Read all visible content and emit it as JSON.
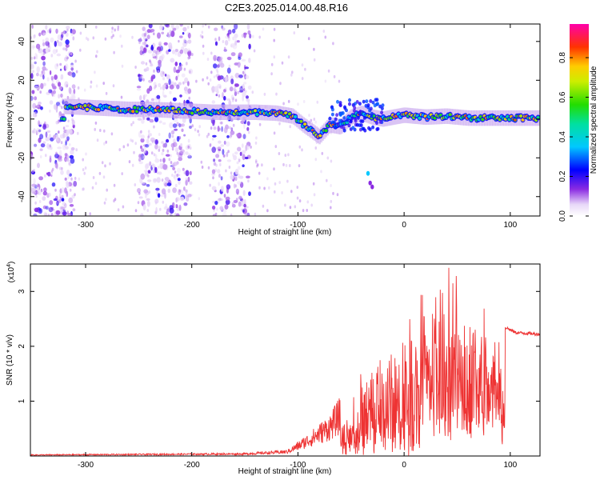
{
  "title": "C2E3.2025.014.00.48.R16",
  "chart_data": [
    {
      "type": "heatmap",
      "xlabel": "Height of straight line (km)",
      "ylabel": "Frequency (Hz)",
      "xlim": [
        -352,
        128
      ],
      "ylim": [
        -50,
        49
      ],
      "x_ticks": [
        -300,
        -200,
        -100,
        0,
        100
      ],
      "y_ticks": [
        -40,
        -20,
        0,
        20,
        40
      ],
      "colorbar": {
        "label": "Normalized spectral amplitude",
        "range": [
          0,
          0.97
        ],
        "ticks": [
          0.0,
          0.2,
          0.4,
          0.6,
          0.8
        ],
        "tick_labels": [
          "0.0",
          "0.2",
          "0.4",
          "0.6",
          "0.8"
        ]
      },
      "ridge": [
        {
          "x": -320,
          "y": 6.5
        },
        {
          "x": -300,
          "y": 6
        },
        {
          "x": -280,
          "y": 5.5
        },
        {
          "x": -260,
          "y": 5
        },
        {
          "x": -240,
          "y": 5
        },
        {
          "x": -220,
          "y": 4.5
        },
        {
          "x": -200,
          "y": 4
        },
        {
          "x": -180,
          "y": 3.5
        },
        {
          "x": -160,
          "y": 3.5
        },
        {
          "x": -140,
          "y": 3.5
        },
        {
          "x": -120,
          "y": 3
        },
        {
          "x": -105,
          "y": 1.5
        },
        {
          "x": -95,
          "y": -3
        },
        {
          "x": -80,
          "y": -9
        },
        {
          "x": -70,
          "y": -3
        },
        {
          "x": -60,
          "y": -4
        },
        {
          "x": -50,
          "y": 1
        },
        {
          "x": -40,
          "y": 3
        },
        {
          "x": -30,
          "y": 1
        },
        {
          "x": -20,
          "y": 0
        },
        {
          "x": 0,
          "y": 2
        },
        {
          "x": 20,
          "y": 1
        },
        {
          "x": 40,
          "y": 1.5
        },
        {
          "x": 60,
          "y": 0.5
        },
        {
          "x": 80,
          "y": 0.5
        },
        {
          "x": 100,
          "y": 0.5
        },
        {
          "x": 128,
          "y": 0.5
        }
      ],
      "outlier_points": [
        {
          "x": -34,
          "y": -28
        },
        {
          "x": -32,
          "y": -33
        },
        {
          "x": -30,
          "y": -35
        }
      ],
      "noise_bands": [
        [
          -352,
          -310
        ],
        [
          -250,
          -200
        ],
        [
          -180,
          -145
        ]
      ]
    },
    {
      "type": "line",
      "xlabel": "Height of straight line (km)",
      "ylabel": "SNR (10 * v/v)",
      "y_scale_label": "(x10",
      "y_scale_exponent": "4",
      "xlim": [
        -352,
        128
      ],
      "ylim": [
        0,
        3.5
      ],
      "x_ticks": [
        -300,
        -200,
        -100,
        0,
        100
      ],
      "y_ticks": [
        1,
        2,
        3
      ],
      "series": [
        {
          "color": "#ee3333",
          "envelope": [
            {
              "x": -352,
              "y": 0.02
            },
            {
              "x": -150,
              "y": 0.04
            },
            {
              "x": -110,
              "y": 0.08
            },
            {
              "x": -90,
              "y": 0.3
            },
            {
              "x": -70,
              "y": 0.55
            },
            {
              "x": -55,
              "y": 0.9
            },
            {
              "x": -45,
              "y": 1.3
            },
            {
              "x": -35,
              "y": 2.0
            },
            {
              "x": -25,
              "y": 2.8
            },
            {
              "x": -15,
              "y": 2.4
            },
            {
              "x": 0,
              "y": 2.9
            },
            {
              "x": 10,
              "y": 3.0
            },
            {
              "x": 20,
              "y": 3.2
            },
            {
              "x": 35,
              "y": 3.3
            },
            {
              "x": 45,
              "y": 3.4
            },
            {
              "x": 55,
              "y": 3.2
            },
            {
              "x": 70,
              "y": 2.9
            },
            {
              "x": 85,
              "y": 2.5
            },
            {
              "x": 95,
              "y": 2.35
            },
            {
              "x": 105,
              "y": 2.25
            },
            {
              "x": 128,
              "y": 2.22
            }
          ]
        }
      ]
    }
  ]
}
